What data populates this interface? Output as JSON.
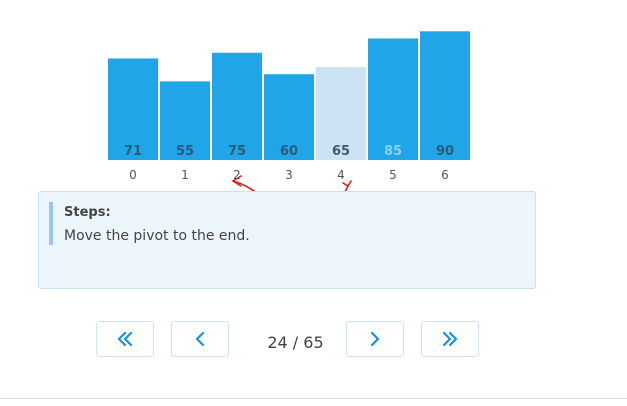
{
  "chart_data": {
    "type": "bar",
    "categories": [
      "0",
      "1",
      "2",
      "3",
      "4",
      "5",
      "6"
    ],
    "values": [
      71,
      55,
      75,
      60,
      65,
      85,
      90
    ],
    "highlighted_index": 4,
    "swap_annotation": {
      "from": 2,
      "to": 4
    },
    "ylim": [
      0,
      100
    ],
    "colors": {
      "bar": "#1fa5e8",
      "bar_highlight": "#cce3f6",
      "label_dark": "#2d5a78",
      "label_light": "#8fd0f3",
      "label_highlight": "#3e5b70",
      "annotation": "#d42020"
    }
  },
  "steps": {
    "title": "Steps:",
    "text": "Move the pivot to the end."
  },
  "pagination": {
    "current": "24",
    "separator": "/",
    "total": "65"
  },
  "icons": {
    "first": "double-chevron-left-icon",
    "prev": "chevron-left-icon",
    "next": "chevron-right-icon",
    "last": "double-chevron-right-icon"
  },
  "accent_color": "#1a8fe0"
}
